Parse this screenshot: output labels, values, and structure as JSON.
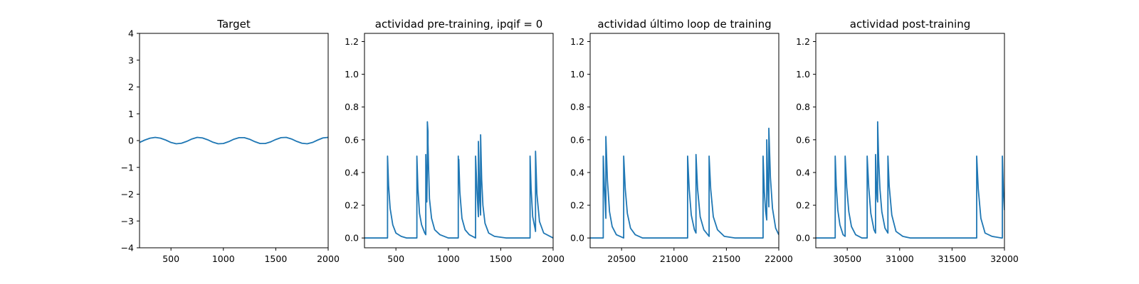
{
  "chart_data": [
    {
      "type": "line",
      "title": "Target",
      "xlabel": "",
      "ylabel": "",
      "xlim": [
        200,
        2000
      ],
      "ylim": [
        -4,
        4
      ],
      "xticks": [
        500,
        1000,
        1500,
        2000
      ],
      "yticks": [
        -4,
        -3,
        -2,
        -1,
        0,
        1,
        2,
        3,
        4
      ],
      "grid": false,
      "color": "#1f77b4",
      "series": [
        {
          "x": [
            200,
            250,
            300,
            350,
            400,
            450,
            500,
            550,
            600,
            650,
            700,
            750,
            800,
            850,
            900,
            950,
            1000,
            1050,
            1100,
            1150,
            1200,
            1250,
            1300,
            1350,
            1400,
            1450,
            1500,
            1550,
            1600,
            1650,
            1700,
            1750,
            1800,
            1850,
            1900,
            1950,
            2000
          ],
          "y": [
            -0.07,
            0.02,
            0.09,
            0.12,
            0.09,
            0.02,
            -0.07,
            -0.12,
            -0.1,
            -0.03,
            0.06,
            0.12,
            0.1,
            0.03,
            -0.06,
            -0.12,
            -0.11,
            -0.04,
            0.05,
            0.11,
            0.11,
            0.05,
            -0.04,
            -0.11,
            -0.11,
            -0.05,
            0.04,
            0.11,
            0.12,
            0.06,
            -0.03,
            -0.1,
            -0.12,
            -0.07,
            0.02,
            0.1,
            0.12
          ]
        }
      ]
    },
    {
      "type": "line",
      "title": "actividad pre-training, ipqif = 0",
      "xlabel": "",
      "ylabel": "",
      "xlim": [
        200,
        2000
      ],
      "ylim": [
        -0.06,
        1.25
      ],
      "xticks": [
        500,
        1000,
        1500,
        2000
      ],
      "yticks": [
        0.0,
        0.2,
        0.4,
        0.6,
        0.8,
        1.0,
        1.2
      ],
      "grid": false,
      "color": "#1f77b4",
      "series": [
        {
          "x": [
            200,
            420,
            420,
            430,
            445,
            470,
            500,
            550,
            600,
            700,
            700,
            710,
            725,
            745,
            775,
            785,
            785,
            790,
            795,
            795,
            800,
            800,
            806,
            806,
            812,
            820,
            840,
            870,
            920,
            1000,
            1095,
            1095,
            1100,
            1100,
            1110,
            1130,
            1160,
            1200,
            1260,
            1260,
            1275,
            1287,
            1287,
            1300,
            1308,
            1308,
            1318,
            1330,
            1350,
            1385,
            1440,
            1550,
            1780,
            1780,
            1790,
            1805,
            1830,
            1832,
            1832,
            1845,
            1870,
            1910,
            2000
          ],
          "y": [
            0.0,
            0.0,
            0.5,
            0.32,
            0.18,
            0.08,
            0.03,
            0.01,
            0.0,
            0.0,
            0.5,
            0.3,
            0.15,
            0.08,
            0.03,
            0.02,
            0.51,
            0.38,
            0.22,
            0.22,
            0.45,
            0.71,
            0.65,
            0.58,
            0.42,
            0.24,
            0.12,
            0.05,
            0.02,
            0.0,
            0.0,
            0.5,
            0.34,
            0.48,
            0.28,
            0.12,
            0.05,
            0.02,
            0.0,
            0.5,
            0.27,
            0.13,
            0.59,
            0.23,
            0.14,
            0.63,
            0.36,
            0.2,
            0.09,
            0.03,
            0.01,
            0.0,
            0.0,
            0.5,
            0.3,
            0.13,
            0.05,
            0.04,
            0.53,
            0.27,
            0.1,
            0.03,
            0.0
          ]
        }
      ]
    },
    {
      "type": "line",
      "title": "actividad último loop de training",
      "xlabel": "",
      "ylabel": "",
      "xlim": [
        20200,
        22000
      ],
      "ylim": [
        -0.06,
        1.25
      ],
      "xticks": [
        20500,
        21000,
        21500,
        22000
      ],
      "yticks": [
        0.0,
        0.2,
        0.4,
        0.6,
        0.8,
        1.0,
        1.2
      ],
      "grid": false,
      "color": "#1f77b4",
      "series": [
        {
          "x": [
            20200,
            20325,
            20325,
            20335,
            20345,
            20350,
            20350,
            20365,
            20385,
            20410,
            20450,
            20520,
            20520,
            20535,
            20555,
            20585,
            20630,
            20700,
            21130,
            21130,
            21145,
            21165,
            21195,
            21210,
            21210,
            21225,
            21250,
            21285,
            21335,
            21335,
            21350,
            21375,
            21415,
            21480,
            21580,
            21850,
            21850,
            21862,
            21875,
            21885,
            21885,
            21895,
            21905,
            21905,
            21920,
            21940,
            21970,
            22000
          ],
          "y": [
            0.0,
            0.0,
            0.5,
            0.32,
            0.2,
            0.12,
            0.62,
            0.35,
            0.16,
            0.07,
            0.02,
            0.0,
            0.5,
            0.3,
            0.15,
            0.06,
            0.02,
            0.0,
            0.0,
            0.5,
            0.3,
            0.14,
            0.05,
            0.03,
            0.51,
            0.3,
            0.13,
            0.05,
            0.01,
            0.5,
            0.3,
            0.13,
            0.05,
            0.01,
            0.0,
            0.0,
            0.5,
            0.28,
            0.16,
            0.11,
            0.6,
            0.33,
            0.19,
            0.67,
            0.37,
            0.18,
            0.06,
            0.02
          ]
        }
      ]
    },
    {
      "type": "line",
      "title": "actividad post-training",
      "xlabel": "",
      "ylabel": "",
      "xlim": [
        30200,
        32000
      ],
      "ylim": [
        -0.06,
        1.25
      ],
      "xticks": [
        30500,
        31000,
        31500,
        32000
      ],
      "yticks": [
        0.0,
        0.2,
        0.4,
        0.6,
        0.8,
        1.0,
        1.2
      ],
      "grid": false,
      "color": "#1f77b4",
      "series": [
        {
          "x": [
            30200,
            30385,
            30385,
            30395,
            30410,
            30430,
            30460,
            30480,
            30480,
            30495,
            30515,
            30540,
            30580,
            30640,
            30690,
            30690,
            30705,
            30725,
            30755,
            30770,
            30770,
            30777,
            30785,
            30790,
            30790,
            30800,
            30812,
            30830,
            30860,
            30888,
            30888,
            30900,
            30925,
            30965,
            31030,
            31100,
            31735,
            31735,
            31750,
            31775,
            31815,
            31880,
            31970,
            31980,
            31980,
            31990,
            32000
          ],
          "y": [
            0.0,
            0.0,
            0.5,
            0.32,
            0.17,
            0.08,
            0.02,
            0.01,
            0.5,
            0.31,
            0.16,
            0.07,
            0.02,
            0.0,
            0.0,
            0.5,
            0.31,
            0.15,
            0.05,
            0.03,
            0.51,
            0.35,
            0.24,
            0.22,
            0.71,
            0.47,
            0.3,
            0.16,
            0.06,
            0.03,
            0.5,
            0.32,
            0.14,
            0.04,
            0.01,
            0.0,
            0.0,
            0.5,
            0.3,
            0.12,
            0.03,
            0.01,
            0.0,
            0.0,
            0.5,
            0.28,
            0.17
          ]
        }
      ]
    }
  ]
}
